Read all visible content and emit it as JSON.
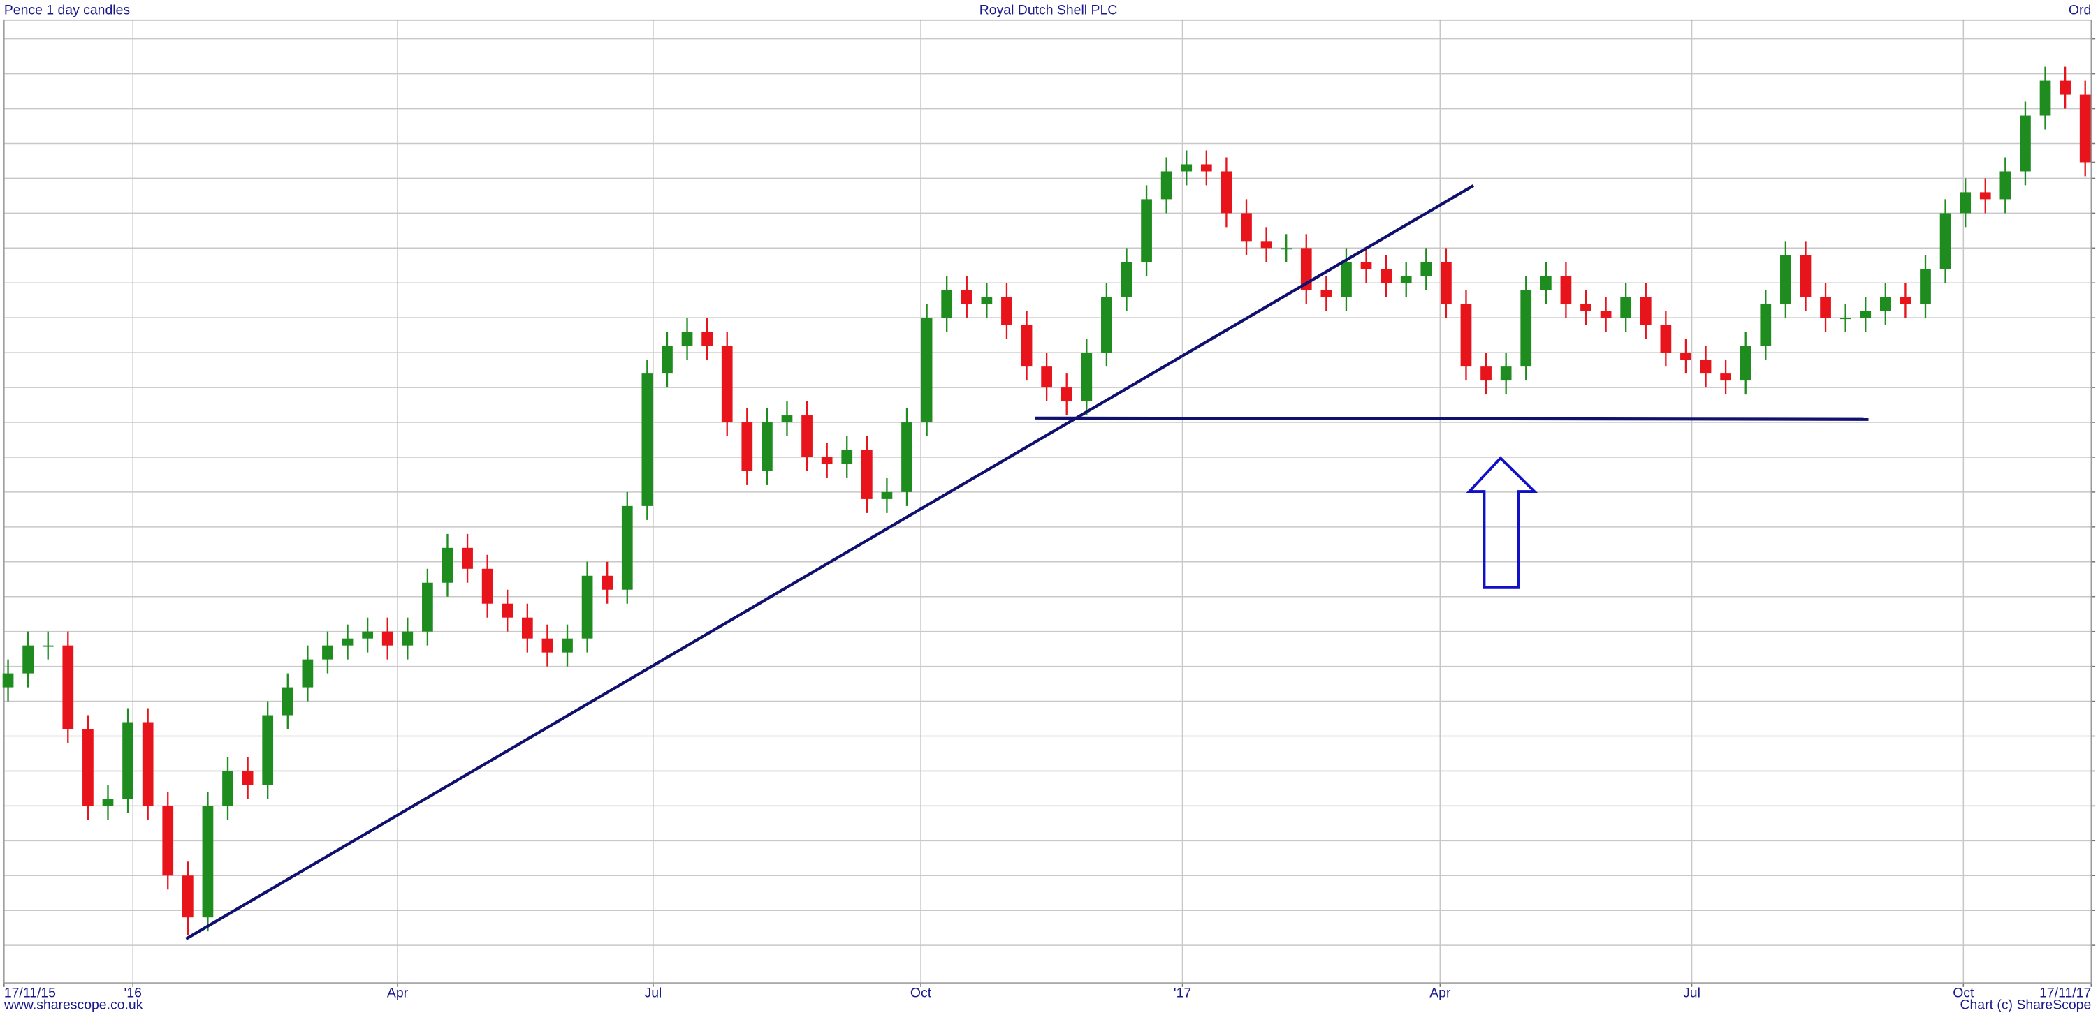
{
  "chart_data": {
    "type": "candlestick",
    "title": "Royal Dutch Shell PLC",
    "subtitle": "Pence 1 day candles",
    "security_class": "Ord",
    "source": "www.sharescope.co.uk",
    "credit": "Chart (c) ShareScope",
    "x": [
      0,
      1,
      2,
      3,
      4,
      5,
      6,
      7,
      8,
      9,
      10,
      11,
      12,
      13,
      14,
      15,
      16,
      17,
      18,
      19,
      20,
      21,
      22,
      23,
      24,
      25,
      26,
      27,
      28,
      29,
      30,
      31,
      32,
      33,
      34,
      35,
      36,
      37,
      38,
      39,
      40,
      41,
      42,
      43,
      44,
      45,
      46,
      47,
      48,
      49,
      50,
      51,
      52,
      53,
      54,
      55,
      56,
      57,
      58,
      59,
      60,
      61,
      62,
      63,
      64,
      65,
      66,
      67,
      68,
      69,
      70,
      71,
      72,
      73,
      74,
      75,
      76,
      77,
      78,
      79,
      80,
      81,
      82,
      83,
      84,
      85,
      86,
      87,
      88,
      89,
      90,
      91,
      92,
      93,
      94,
      95,
      96,
      97,
      98,
      99,
      100,
      101,
      102,
      103,
      104
    ],
    "open": [
      1620,
      1640,
      1680,
      1680,
      1560,
      1450,
      1460,
      1570,
      1450,
      1350,
      1290,
      1450,
      1500,
      1480,
      1580,
      1620,
      1660,
      1680,
      1690,
      1700,
      1680,
      1700,
      1770,
      1820,
      1790,
      1740,
      1720,
      1690,
      1670,
      1690,
      1780,
      1760,
      1880,
      2070,
      2110,
      2130,
      2110,
      2000,
      1930,
      2000,
      2010,
      1950,
      1940,
      1960,
      1890,
      1900,
      2000,
      2150,
      2190,
      2170,
      2180,
      2140,
      2080,
      2050,
      2030,
      2100,
      2180,
      2230,
      2320,
      2360,
      2370,
      2360,
      2300,
      2260,
      2250,
      2250,
      2190,
      2180,
      2230,
      2220,
      2200,
      2210,
      2230,
      2170,
      2080,
      2060,
      2080,
      2190,
      2210,
      2170,
      2160,
      2150,
      2180,
      2140,
      2100,
      2090,
      2070,
      2060,
      2110,
      2170,
      2240,
      2180,
      2150,
      2150,
      2160,
      2180,
      2170,
      2220,
      2300,
      2330,
      2320,
      2360,
      2440,
      2490,
      2470
    ],
    "high": [
      1660,
      1700,
      1700,
      1700,
      1580,
      1480,
      1590,
      1590,
      1470,
      1370,
      1470,
      1520,
      1520,
      1600,
      1640,
      1680,
      1700,
      1710,
      1720,
      1720,
      1720,
      1790,
      1840,
      1840,
      1810,
      1760,
      1740,
      1710,
      1710,
      1800,
      1800,
      1900,
      2090,
      2130,
      2150,
      2150,
      2130,
      2020,
      2020,
      2030,
      2030,
      1970,
      1980,
      1980,
      1920,
      2020,
      2170,
      2210,
      2210,
      2200,
      2200,
      2160,
      2100,
      2070,
      2120,
      2200,
      2250,
      2340,
      2380,
      2390,
      2390,
      2380,
      2320,
      2280,
      2270,
      2270,
      2210,
      2250,
      2250,
      2240,
      2230,
      2250,
      2250,
      2190,
      2100,
      2100,
      2210,
      2230,
      2230,
      2190,
      2180,
      2200,
      2200,
      2160,
      2120,
      2110,
      2090,
      2130,
      2190,
      2260,
      2260,
      2200,
      2170,
      2180,
      2200,
      2200,
      2240,
      2320,
      2350,
      2350,
      2380,
      2460,
      2510,
      2510,
      2490
    ],
    "low": [
      1600,
      1620,
      1660,
      1540,
      1430,
      1430,
      1440,
      1430,
      1330,
      1265,
      1270,
      1430,
      1460,
      1460,
      1560,
      1600,
      1640,
      1660,
      1670,
      1660,
      1660,
      1680,
      1750,
      1770,
      1720,
      1700,
      1670,
      1650,
      1650,
      1670,
      1740,
      1740,
      1860,
      2050,
      2090,
      2090,
      1980,
      1910,
      1910,
      1980,
      1930,
      1920,
      1920,
      1870,
      1870,
      1880,
      1980,
      2130,
      2150,
      2150,
      2120,
      2060,
      2030,
      2010,
      2010,
      2080,
      2160,
      2210,
      2300,
      2340,
      2340,
      2280,
      2240,
      2230,
      2230,
      2170,
      2160,
      2160,
      2200,
      2180,
      2180,
      2190,
      2150,
      2060,
      2040,
      2040,
      2060,
      2170,
      2150,
      2140,
      2130,
      2130,
      2120,
      2080,
      2070,
      2050,
      2040,
      2040,
      2090,
      2150,
      2160,
      2130,
      2130,
      2130,
      2140,
      2150,
      2150,
      2200,
      2280,
      2300,
      2300,
      2340,
      2420,
      2450,
      2353
    ],
    "close": [
      1640,
      1680,
      1680,
      1560,
      1450,
      1460,
      1570,
      1450,
      1350,
      1290,
      1450,
      1500,
      1480,
      1580,
      1620,
      1660,
      1680,
      1690,
      1700,
      1680,
      1700,
      1770,
      1820,
      1790,
      1740,
      1720,
      1690,
      1670,
      1690,
      1780,
      1760,
      1880,
      2070,
      2110,
      2130,
      2110,
      2000,
      1930,
      2000,
      2010,
      1950,
      1940,
      1960,
      1890,
      1900,
      2000,
      2150,
      2190,
      2170,
      2180,
      2140,
      2080,
      2050,
      2030,
      2100,
      2180,
      2230,
      2320,
      2360,
      2370,
      2360,
      2300,
      2260,
      2250,
      2250,
      2190,
      2180,
      2230,
      2220,
      2200,
      2210,
      2230,
      2170,
      2080,
      2060,
      2080,
      2190,
      2210,
      2170,
      2160,
      2150,
      2180,
      2140,
      2100,
      2090,
      2070,
      2060,
      2110,
      2170,
      2240,
      2180,
      2150,
      2150,
      2160,
      2180,
      2170,
      2220,
      2300,
      2330,
      2320,
      2360,
      2440,
      2490,
      2470,
      2373
    ],
    "up_color": "#1e8c1e",
    "down_color": "#e8141b",
    "xlim": [
      -0.2,
      104.3
    ],
    "xticks": [
      {
        "value": -0.2,
        "label": "17/11/15"
      },
      {
        "value": 6.25,
        "label": "'16"
      },
      {
        "value": 19.5,
        "label": "Apr"
      },
      {
        "value": 32.3,
        "label": "Jul"
      },
      {
        "value": 45.7,
        "label": "Oct"
      },
      {
        "value": 58.8,
        "label": "'17"
      },
      {
        "value": 71.7,
        "label": "Apr"
      },
      {
        "value": 84.3,
        "label": "Jul"
      },
      {
        "value": 97.9,
        "label": "Oct"
      },
      {
        "value": 104.3,
        "label": "17/11/17"
      }
    ],
    "ylim": [
      1196,
      2577
    ],
    "yticks": [
      1250,
      1300,
      1350,
      1400,
      1450,
      1500,
      1550,
      1600,
      1650,
      1700,
      1750,
      1800,
      1850,
      1900,
      1950,
      2000,
      2050,
      2100,
      2150,
      2200,
      2250,
      2300,
      2350,
      2400,
      2450,
      2500,
      2550
    ],
    "last_price": 2373,
    "grid": true
  }
}
